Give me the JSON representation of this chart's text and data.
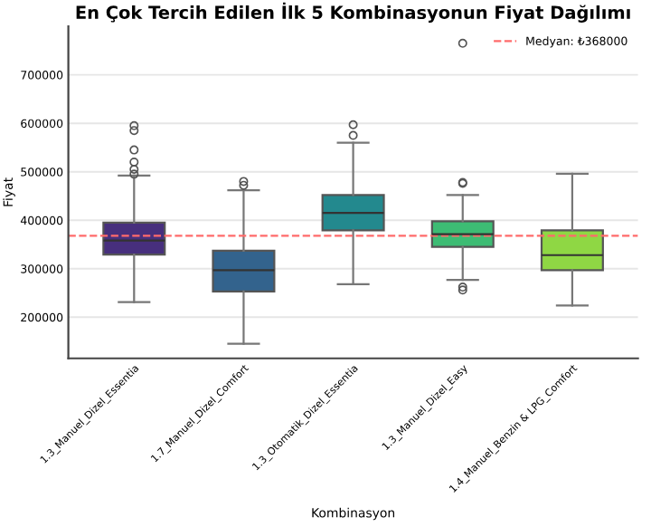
{
  "chart_data": {
    "type": "box",
    "title": "En Çok Tercih Edilen İlk 5 Kombinasyonun Fiyat Dağılımı",
    "xlabel": "Kombinasyon",
    "ylabel": "Fiyat",
    "categories": [
      "1.3_Manuel_Dizel_Essentia",
      "1.7_Manuel_Dizel_Comfort",
      "1.3_Otomatik_Dizel_Essentia",
      "1.3_Manuel_Dizel_Easy",
      "1.4_Manuel_Benzin & LPG_Comfort"
    ],
    "colors": [
      "#472f7d",
      "#33638d",
      "#23898e",
      "#3dbc74",
      "#8fd744"
    ],
    "boxes": [
      {
        "low": 231000,
        "q1": 329000,
        "median": 358000,
        "q3": 395000,
        "high": 492000,
        "outliers": [
          595000,
          585000,
          545000,
          520000,
          505000,
          495000
        ]
      },
      {
        "low": 145000,
        "q1": 253000,
        "median": 297000,
        "q3": 337000,
        "high": 462000,
        "outliers": [
          480000,
          472000
        ]
      },
      {
        "low": 268000,
        "q1": 379000,
        "median": 415000,
        "q3": 452000,
        "high": 560000,
        "outliers": [
          597000,
          575000
        ]
      },
      {
        "low": 277000,
        "q1": 345000,
        "median": 371000,
        "q3": 398000,
        "high": 452000,
        "outliers": [
          478000,
          476000,
          262000,
          256000,
          765000
        ]
      },
      {
        "low": 224000,
        "q1": 297000,
        "median": 328000,
        "q3": 379000,
        "high": 496000
      }
    ],
    "ref_lines": [
      {
        "axis": "y",
        "value": 368000,
        "label": "Medyan: ₺368000",
        "color": "#ff6b6b",
        "line_style": "dashed"
      }
    ],
    "ylim": [
      115000,
      800000
    ],
    "yticks": [
      200000,
      300000,
      400000,
      500000,
      600000,
      700000
    ],
    "grid": "y",
    "legend": "top right"
  }
}
